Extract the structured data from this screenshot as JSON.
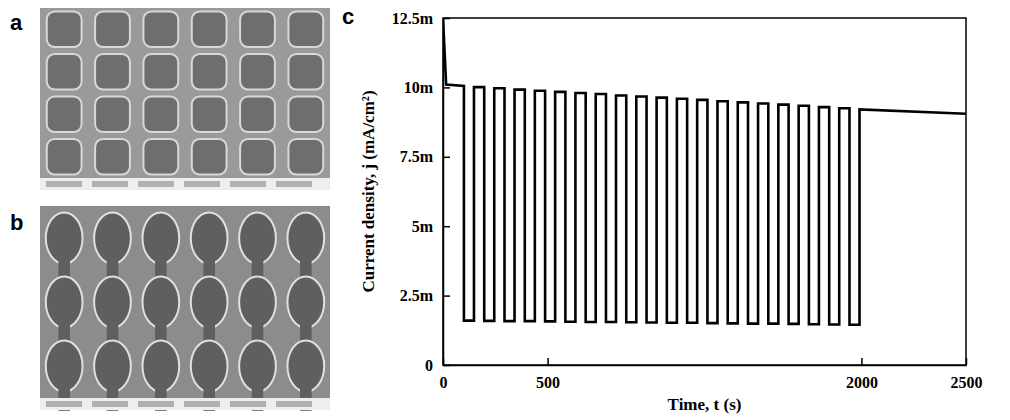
{
  "panel_labels": [
    "a",
    "b",
    "c"
  ],
  "chart_data": {
    "type": "line",
    "xlabel": "Time, t (s)",
    "ylabel": "Current density, j (mA/cm²)",
    "color": "#000000",
    "grid": false,
    "xlim": [
      0,
      2500
    ],
    "xticks": [
      0,
      500,
      2000,
      2500
    ],
    "ylim": [
      0,
      0.0125
    ],
    "yticks": [
      0,
      {
        "value": 0.0025,
        "label": "2.5m"
      },
      {
        "value": 0.005,
        "label": "5m"
      },
      {
        "value": 0.0075,
        "label": "7.5m"
      },
      {
        "value": 0.01,
        "label": "10m"
      },
      {
        "value": 0.0125,
        "label": "12.5m"
      }
    ],
    "x": [
      0,
      15,
      100,
      100,
      148,
      148,
      197,
      197,
      245,
      245,
      294,
      294,
      342,
      342,
      391,
      391,
      439,
      439,
      488,
      488,
      536,
      536,
      585,
      585,
      633,
      633,
      682,
      682,
      730,
      730,
      779,
      779,
      827,
      827,
      876,
      876,
      924,
      924,
      973,
      973,
      1021,
      1021,
      1070,
      1070,
      1118,
      1118,
      1167,
      1167,
      1215,
      1215,
      1264,
      1264,
      1312,
      1312,
      1361,
      1361,
      1409,
      1409,
      1458,
      1458,
      1506,
      1506,
      1555,
      1555,
      1603,
      1603,
      1652,
      1652,
      1700,
      1700,
      1749,
      1749,
      1797,
      1797,
      1846,
      1846,
      1894,
      1894,
      1943,
      1943,
      1991,
      1991,
      2500
    ],
    "values": [
      0.0125,
      0.0101,
      0.01005,
      0.0016,
      0.0016,
      0.01001,
      0.01001,
      0.00159,
      0.00159,
      0.00997,
      0.00997,
      0.00158,
      0.00158,
      0.00992,
      0.00992,
      0.00158,
      0.00158,
      0.00988,
      0.00988,
      0.00157,
      0.00157,
      0.00984,
      0.00984,
      0.00156,
      0.00156,
      0.0098,
      0.0098,
      0.00155,
      0.00155,
      0.00976,
      0.00976,
      0.00155,
      0.00155,
      0.00971,
      0.00971,
      0.00154,
      0.00154,
      0.00967,
      0.00967,
      0.00153,
      0.00153,
      0.00963,
      0.00963,
      0.00152,
      0.00152,
      0.00959,
      0.00959,
      0.00152,
      0.00152,
      0.00955,
      0.00955,
      0.00151,
      0.00151,
      0.0095,
      0.0095,
      0.0015,
      0.0015,
      0.00946,
      0.00946,
      0.00149,
      0.00149,
      0.00942,
      0.00942,
      0.00149,
      0.00149,
      0.00938,
      0.00938,
      0.00148,
      0.00148,
      0.00934,
      0.00934,
      0.00147,
      0.00147,
      0.00929,
      0.00929,
      0.00146,
      0.00146,
      0.00925,
      0.00925,
      0.00145,
      0.00145,
      0.00921,
      0.00905
    ]
  }
}
